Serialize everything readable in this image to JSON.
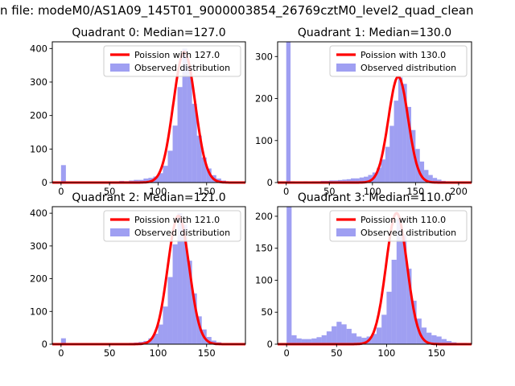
{
  "figure": {
    "title": "n file: modeM0/AS1A09_145T01_9000003854_26769cztM0_level2_quad_clean",
    "background": "#ffffff"
  },
  "colors": {
    "histogram_fill": "#5050e8",
    "histogram_opacity": 0.55,
    "poisson_curve": "#ff0000",
    "legend_border": "#cccccc",
    "axes": "#000000",
    "text": "#000000"
  },
  "chart_data": [
    {
      "type": "bar",
      "title": "Quadrant 0: Median=127.0",
      "median": 127.0,
      "legend": [
        "Poission with 127.0",
        "Observed distribution"
      ],
      "legend_position": "upper right",
      "grid": false,
      "bin_start": 0,
      "bin_width": 5,
      "counts": [
        52,
        2,
        0,
        0,
        2,
        0,
        0,
        2,
        0,
        2,
        3,
        2,
        5,
        4,
        6,
        8,
        8,
        12,
        14,
        18,
        28,
        50,
        95,
        170,
        285,
        400,
        345,
        235,
        140,
        75,
        42,
        22,
        12,
        6,
        3,
        2,
        2
      ],
      "curve": {
        "type": "poisson",
        "mu": 127.0,
        "amplitude": 390
      },
      "xlim": [
        -9,
        190
      ],
      "ylim": [
        0,
        420
      ],
      "xticks": [
        0,
        50,
        100,
        150
      ],
      "yticks": [
        0,
        100,
        200,
        300,
        400
      ]
    },
    {
      "type": "bar",
      "title": "Quadrant 1: Median=130.0",
      "median": 130.0,
      "legend": [
        "Poission with 130.0",
        "Observed distribution"
      ],
      "legend_position": "upper right",
      "grid": false,
      "bin_start": 0,
      "bin_width": 5,
      "counts": [
        340,
        3,
        2,
        2,
        3,
        2,
        3,
        3,
        4,
        4,
        5,
        5,
        6,
        7,
        8,
        10,
        10,
        12,
        14,
        18,
        24,
        35,
        55,
        85,
        135,
        195,
        250,
        235,
        180,
        125,
        80,
        50,
        30,
        18,
        11,
        7,
        4,
        3,
        2,
        2,
        1,
        1
      ],
      "curve": {
        "type": "poisson",
        "mu": 130.0,
        "amplitude": 252
      },
      "xlim": [
        -10,
        215
      ],
      "ylim": [
        0,
        335
      ],
      "xticks": [
        0,
        50,
        100,
        150,
        200
      ],
      "yticks": [
        0,
        100,
        200,
        300
      ]
    },
    {
      "type": "bar",
      "title": "Quadrant 2: Median=121.0",
      "median": 121.0,
      "legend": [
        "Poission with 121.0",
        "Observed distribution"
      ],
      "legend_position": "upper right",
      "grid": false,
      "bin_start": 0,
      "bin_width": 5,
      "counts": [
        18,
        2,
        1,
        1,
        1,
        1,
        1,
        1,
        2,
        2,
        2,
        2,
        3,
        3,
        4,
        5,
        7,
        10,
        18,
        32,
        60,
        115,
        205,
        305,
        400,
        365,
        255,
        155,
        85,
        45,
        22,
        11,
        6,
        3,
        2,
        2,
        1
      ],
      "curve": {
        "type": "poisson",
        "mu": 121.0,
        "amplitude": 392
      },
      "xlim": [
        -9,
        190
      ],
      "ylim": [
        0,
        420
      ],
      "xticks": [
        0,
        50,
        100,
        150
      ],
      "yticks": [
        0,
        100,
        200,
        300,
        400
      ]
    },
    {
      "type": "bar",
      "title": "Quadrant 3: Median=110.0",
      "median": 110.0,
      "legend": [
        "Poission with 110.0",
        "Observed distribution"
      ],
      "legend_position": "upper right",
      "grid": false,
      "bin_start": 0,
      "bin_width": 5,
      "counts": [
        215,
        14,
        9,
        8,
        8,
        9,
        11,
        14,
        20,
        28,
        35,
        31,
        24,
        17,
        12,
        10,
        12,
        16,
        26,
        46,
        82,
        132,
        196,
        172,
        118,
        68,
        40,
        26,
        18,
        14,
        12,
        8,
        5,
        3,
        2,
        2
      ],
      "curve": {
        "type": "poisson",
        "mu": 110.0,
        "amplitude": 205
      },
      "xlim": [
        -9,
        185
      ],
      "ylim": [
        0,
        215
      ],
      "xticks": [
        0,
        50,
        100,
        150
      ],
      "yticks": [
        0,
        50,
        100,
        150,
        200
      ]
    }
  ]
}
